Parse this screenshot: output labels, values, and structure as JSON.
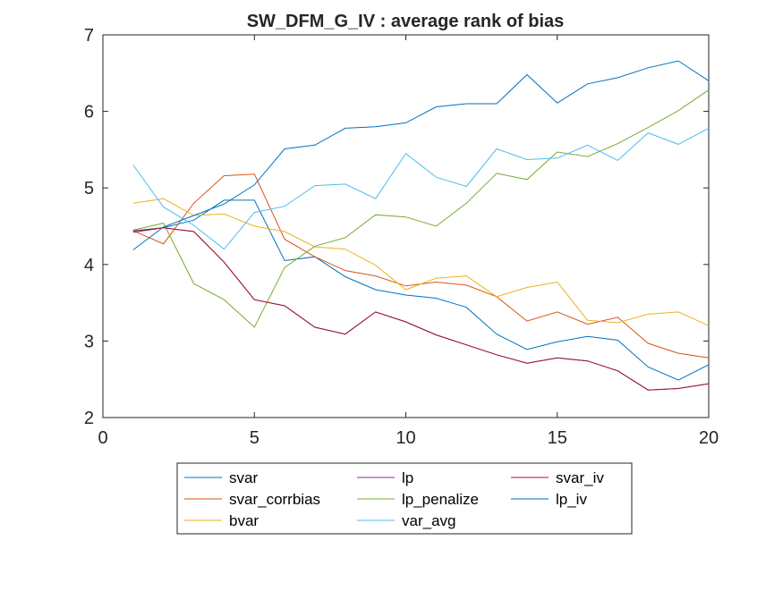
{
  "chart_data": {
    "type": "line",
    "title": "SW_DFM_G_IV : average rank of bias",
    "xlabel": "",
    "ylabel": "",
    "xlim": [
      0,
      20
    ],
    "ylim": [
      2,
      7
    ],
    "xticks": [
      0,
      5,
      10,
      15,
      20
    ],
    "yticks": [
      2,
      3,
      4,
      5,
      6,
      7
    ],
    "grid": false,
    "legend_position": "bottom-center (outside), 3 columns",
    "x": [
      1,
      2,
      3,
      4,
      5,
      6,
      7,
      8,
      9,
      10,
      11,
      12,
      13,
      14,
      15,
      16,
      17,
      18,
      19,
      20
    ],
    "series": [
      {
        "name": "svar",
        "color": "#0072BD",
        "values": [
          4.44,
          4.48,
          4.58,
          4.84,
          4.84,
          4.05,
          4.1,
          3.84,
          3.67,
          3.6,
          3.56,
          3.44,
          3.09,
          2.89,
          2.99,
          3.06,
          3.01,
          2.66,
          2.49,
          2.69
        ]
      },
      {
        "name": "svar_corrbias",
        "color": "#D95319",
        "values": [
          4.44,
          4.27,
          4.8,
          5.16,
          5.18,
          4.33,
          4.1,
          3.92,
          3.85,
          3.72,
          3.77,
          3.73,
          3.58,
          3.26,
          3.38,
          3.22,
          3.31,
          2.97,
          2.84,
          2.78
        ]
      },
      {
        "name": "bvar",
        "color": "#EDB120",
        "values": [
          4.8,
          4.86,
          4.64,
          4.66,
          4.5,
          4.43,
          4.23,
          4.2,
          3.99,
          3.67,
          3.82,
          3.85,
          3.58,
          3.7,
          3.77,
          3.27,
          3.24,
          3.35,
          3.38,
          3.2
        ]
      },
      {
        "name": "lp",
        "color": "#7E2F8E",
        "values": [
          4.44,
          4.48,
          4.43,
          4.03,
          3.54,
          3.46,
          3.18,
          3.09,
          3.38,
          3.25,
          3.08,
          2.95,
          2.82,
          2.71,
          2.78,
          2.74,
          2.61,
          2.36,
          2.38,
          2.44
        ]
      },
      {
        "name": "lp_penalize",
        "color": "#77AC30",
        "values": [
          4.45,
          4.54,
          3.75,
          3.54,
          3.18,
          3.96,
          4.24,
          4.35,
          4.65,
          4.62,
          4.5,
          4.8,
          5.19,
          5.11,
          5.47,
          5.41,
          5.58,
          5.79,
          6.01,
          6.28
        ]
      },
      {
        "name": "var_avg",
        "color": "#4DBEEE",
        "values": [
          5.3,
          4.75,
          4.51,
          4.2,
          4.68,
          4.76,
          5.03,
          5.05,
          4.86,
          5.45,
          5.14,
          5.02,
          5.51,
          5.37,
          5.39,
          5.56,
          5.36,
          5.72,
          5.57,
          5.78
        ]
      },
      {
        "name": "svar_iv",
        "color": "#A2142F",
        "values": [
          4.42,
          4.48,
          4.43,
          4.03,
          3.54,
          3.46,
          3.18,
          3.09,
          3.38,
          3.25,
          3.08,
          2.95,
          2.82,
          2.71,
          2.78,
          2.74,
          2.61,
          2.36,
          2.38,
          2.44
        ]
      },
      {
        "name": "lp_iv",
        "color": "#0072BD",
        "values": [
          4.19,
          4.49,
          4.64,
          4.79,
          5.04,
          5.51,
          5.56,
          5.78,
          5.8,
          5.85,
          6.06,
          6.1,
          6.1,
          6.48,
          6.11,
          6.36,
          6.44,
          6.57,
          6.66,
          6.4
        ]
      }
    ],
    "legend_order": [
      "svar",
      "lp",
      "svar_iv",
      "svar_corrbias",
      "lp_penalize",
      "lp_iv",
      "bvar",
      "var_avg"
    ]
  }
}
